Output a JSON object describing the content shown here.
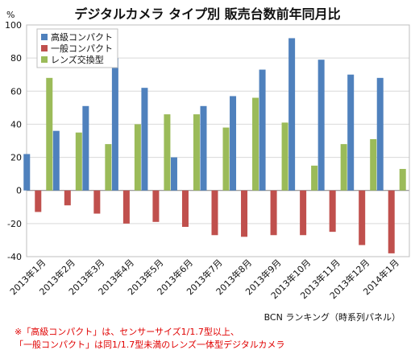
{
  "chart_data": {
    "type": "bar",
    "title": "デジタルカメラ タイプ別 販売台数前年同月比",
    "ylabel": "%",
    "ylim": [
      -40,
      100
    ],
    "yticks": [
      -40,
      -20,
      0,
      20,
      40,
      60,
      80,
      100
    ],
    "grid": true,
    "legend_position": "top-left",
    "categories": [
      "2013年1月",
      "2013年2月",
      "2013年3月",
      "2013年4月",
      "2013年5月",
      "2013年6月",
      "2013年7月",
      "2013年8月",
      "2013年9月",
      "2013年10月",
      "2013年11月",
      "2013年12月",
      "2014年1月"
    ],
    "series": [
      {
        "name": "高級コンパクト",
        "color": "#4f81bd",
        "values": [
          22,
          36,
          51,
          80,
          62,
          20,
          51,
          57,
          73,
          92,
          79,
          70,
          68
        ]
      },
      {
        "name": "一般コンパクト",
        "color": "#c0504d",
        "values": [
          -13,
          -9,
          -14,
          -20,
          -19,
          -22,
          -27,
          -28,
          -27,
          -27,
          -25,
          -33,
          -38
        ]
      },
      {
        "name": "レンズ交換型",
        "color": "#9bbb59",
        "values": [
          68,
          35,
          28,
          40,
          46,
          46,
          38,
          56,
          41,
          15,
          28,
          31,
          13
        ]
      }
    ]
  },
  "credit": "BCN ランキング（時系列パネル）",
  "notes": [
    "※「高級コンパクト」は、センサーサイズ1/1.7型以上、",
    "「一般コンパクト」は同1/1.7型未満のレンズ一体型デジタルカメラ"
  ]
}
